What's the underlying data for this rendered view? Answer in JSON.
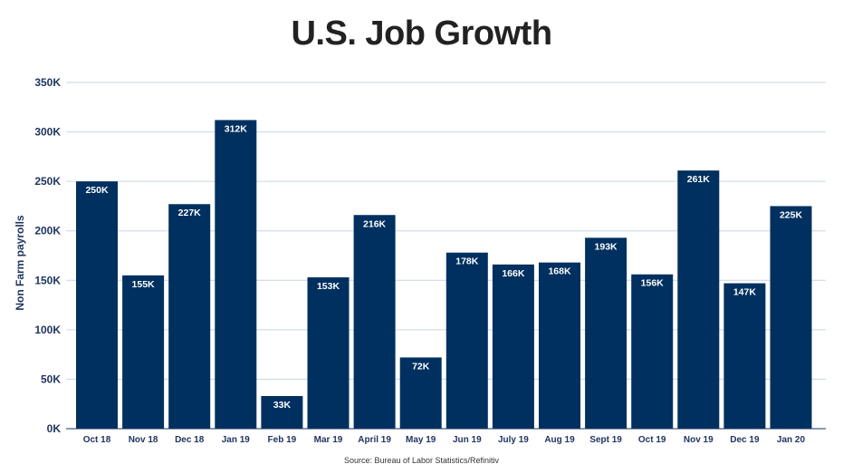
{
  "chart_data": {
    "type": "bar",
    "title": "U.S. Job Growth",
    "ylabel": "Non Farm payrolls",
    "xlabel": "",
    "source": "Source: Bureau of Labor Statistics/Refinitiv",
    "categories": [
      "Oct 18",
      "Nov 18",
      "Dec 18",
      "Jan 19",
      "Feb 19",
      "Mar 19",
      "April 19",
      "May 19",
      "Jun 19",
      "July 19",
      "Aug 19",
      "Sept 19",
      "Oct 19",
      "Nov 19",
      "Dec 19",
      "Jan 20"
    ],
    "values": [
      250,
      155,
      227,
      312,
      33,
      153,
      216,
      72,
      178,
      166,
      168,
      193,
      156,
      261,
      147,
      225
    ],
    "data_labels": [
      "250K",
      "155K",
      "227K",
      "312K",
      "33K",
      "153K",
      "216K",
      "72K",
      "178K",
      "166K",
      "168K",
      "193K",
      "156K",
      "261K",
      "147K",
      "225K"
    ],
    "ylim": [
      0,
      350
    ],
    "yticks": [
      0,
      50,
      100,
      150,
      200,
      250,
      300,
      350
    ],
    "ytick_labels": [
      "0K",
      "50K",
      "100K",
      "150K",
      "200K",
      "250K",
      "300K",
      "350K"
    ],
    "grid": true,
    "bar_color": "#00305f",
    "label_color": "#1f3560"
  }
}
